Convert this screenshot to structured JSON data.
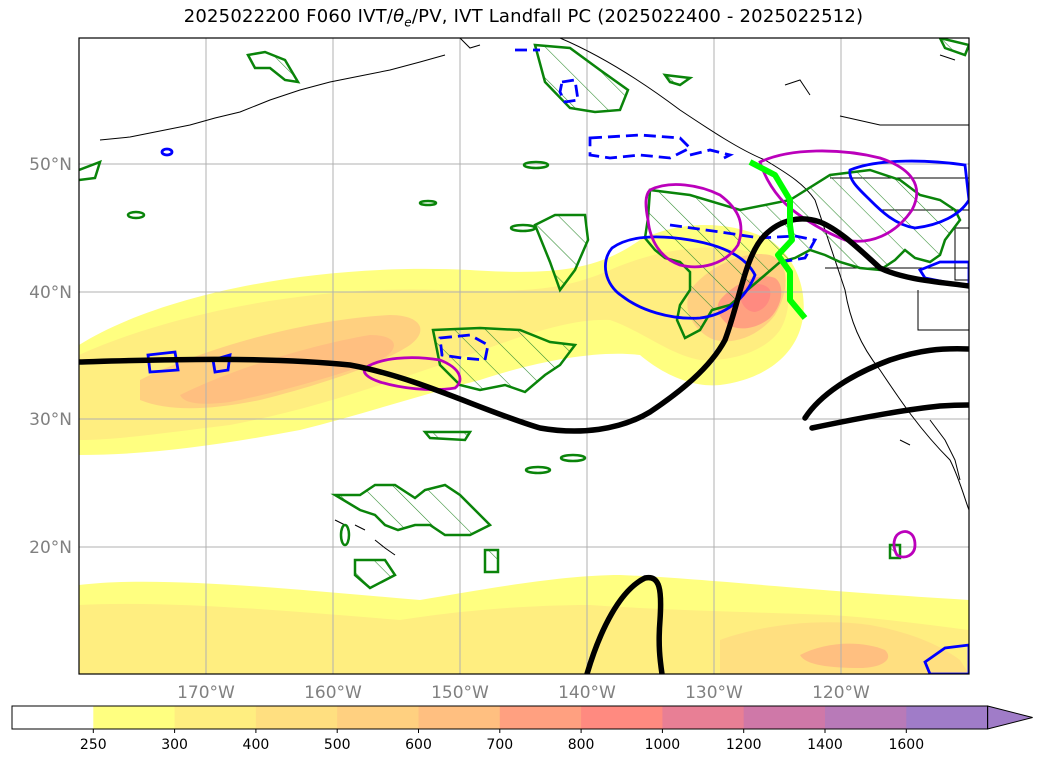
{
  "title": {
    "prefix": "2025022200 F060 IVT/",
    "theta": "θ",
    "sub": "e",
    "suffix": "/PV, IVT Landfall PC (2025022400 - 2025022512)"
  },
  "map": {
    "lat_labels": [
      "50°N",
      "40°N",
      "30°N",
      "20°N"
    ],
    "lon_labels": [
      "170°W",
      "160°W",
      "150°W",
      "140°W",
      "130°W",
      "120°W"
    ],
    "colors": {
      "pv_contour": "#000000",
      "theta_e_hatch": "#008000",
      "positive_contour": "#0000ff",
      "magenta_contour": "#bf00bf",
      "landfall_line": "#00ff00"
    }
  },
  "colorbar": {
    "ticks": [
      "250",
      "300",
      "400",
      "500",
      "600",
      "700",
      "800",
      "1000",
      "1200",
      "1400",
      "1600"
    ],
    "colors": [
      "#ffffff",
      "#ffff80",
      "#ffee80",
      "#ffdf80",
      "#ffd080",
      "#ffbf80",
      "#ffa080",
      "#ff8a80",
      "#e87f95",
      "#cf78a8",
      "#b87ab8",
      "#a07cc8"
    ]
  }
}
